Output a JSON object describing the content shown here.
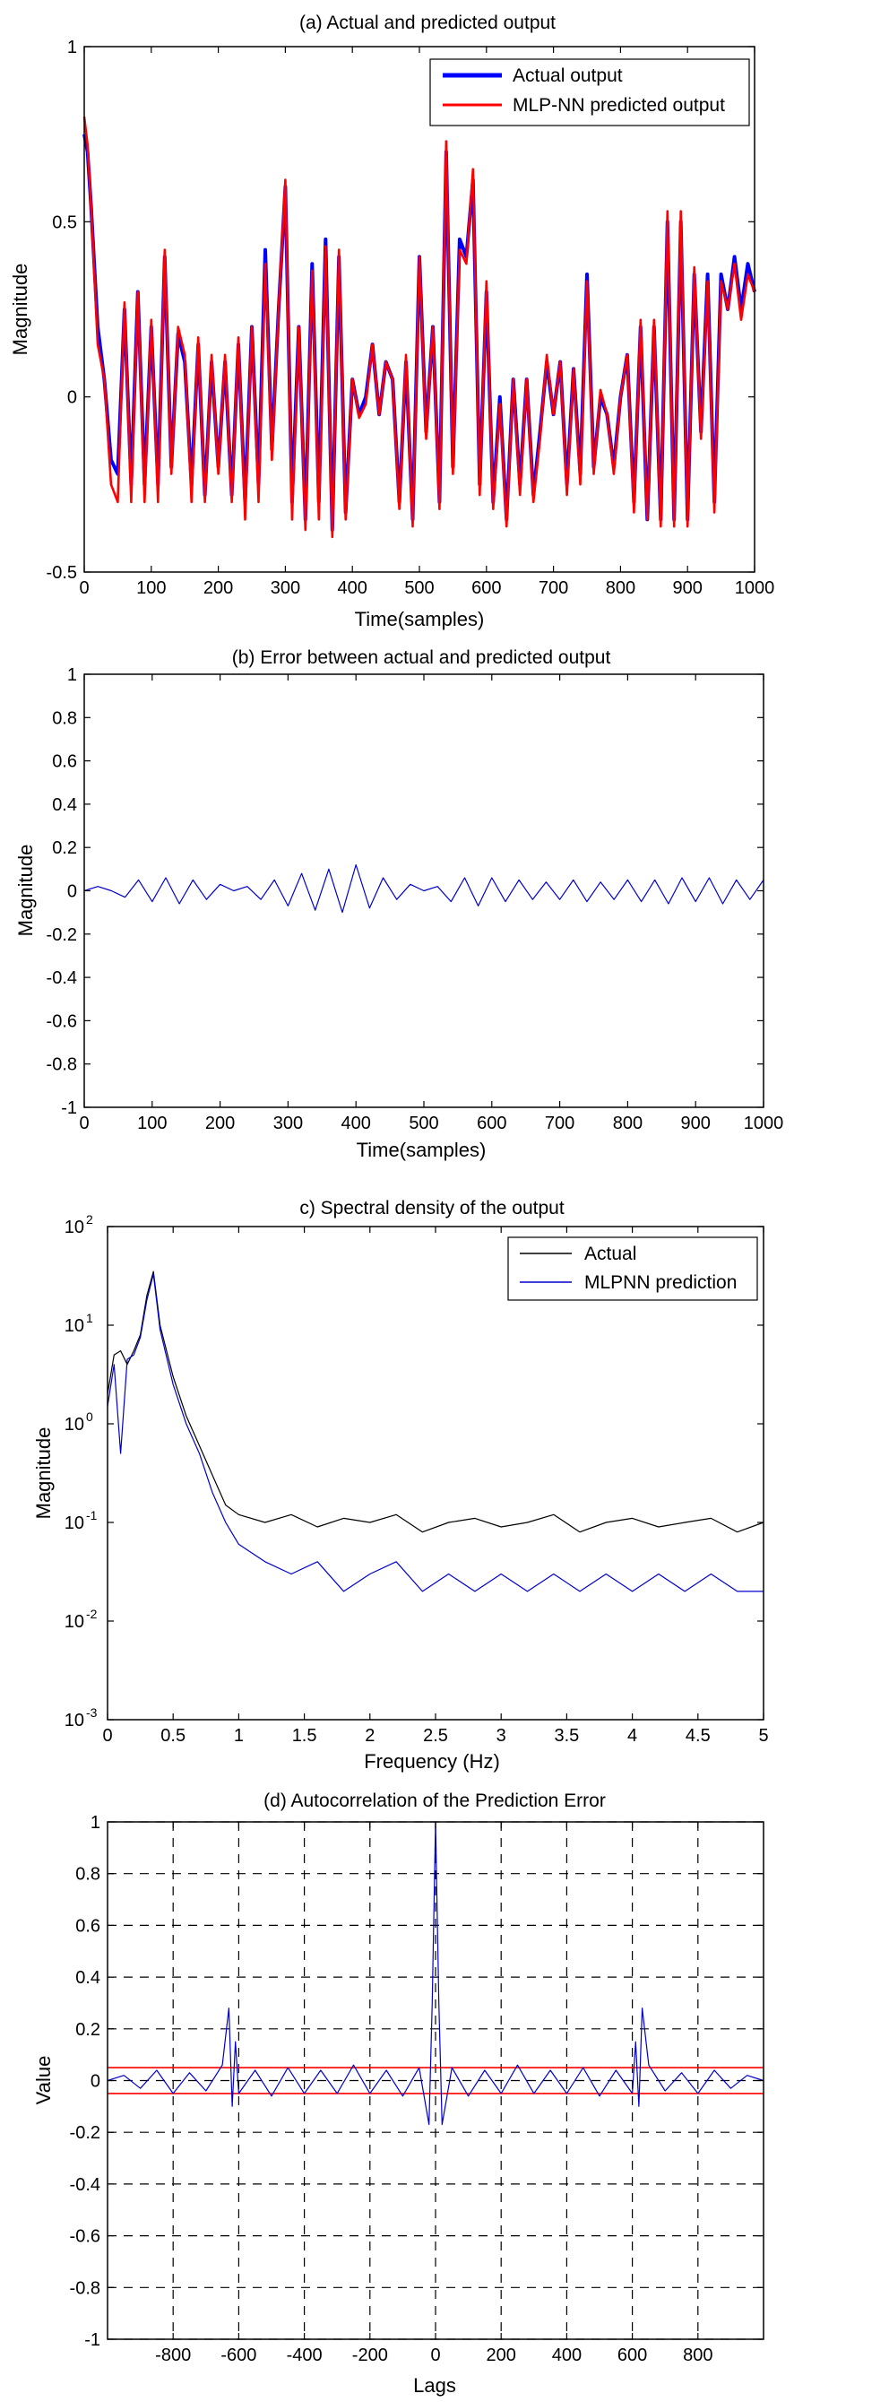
{
  "colors": {
    "actual_blue": "#0000ff",
    "predicted_red": "#ff0000",
    "error_blue": "#0000cc",
    "spectral_actual": "#000000",
    "spectral_prediction": "#0000cc",
    "confidence_red": "#ff0000"
  },
  "chart_data": [
    {
      "type": "line",
      "title": "(a) Actual and predicted output",
      "xlabel": "Time(samples)",
      "ylabel": "Magnitude",
      "xlim": [
        0,
        1000
      ],
      "ylim": [
        -0.5,
        1
      ],
      "xticks": [
        0,
        100,
        200,
        300,
        400,
        500,
        600,
        700,
        800,
        900,
        1000
      ],
      "yticks": [
        -0.5,
        0,
        0.5,
        1
      ],
      "grid": false,
      "legend": "top-right",
      "series": [
        {
          "name": "Actual output",
          "color": "#0000ff",
          "x": [
            0,
            5,
            10,
            20,
            30,
            40,
            50,
            60,
            70,
            80,
            90,
            100,
            110,
            120,
            130,
            140,
            150,
            160,
            170,
            180,
            190,
            200,
            210,
            220,
            230,
            240,
            250,
            260,
            270,
            280,
            290,
            300,
            310,
            320,
            330,
            340,
            350,
            360,
            370,
            380,
            390,
            400,
            410,
            420,
            430,
            440,
            450,
            460,
            470,
            480,
            490,
            500,
            510,
            520,
            530,
            540,
            550,
            560,
            570,
            580,
            590,
            600,
            610,
            620,
            630,
            640,
            650,
            660,
            670,
            680,
            690,
            700,
            710,
            720,
            730,
            740,
            750,
            760,
            770,
            780,
            790,
            800,
            810,
            820,
            830,
            840,
            850,
            860,
            870,
            880,
            890,
            900,
            910,
            920,
            930,
            940,
            950,
            960,
            970,
            980,
            990,
            1000
          ],
          "y": [
            0.75,
            0.7,
            0.55,
            0.2,
            0.05,
            -0.18,
            -0.22,
            0.25,
            -0.25,
            0.3,
            -0.25,
            0.2,
            -0.25,
            0.4,
            -0.2,
            0.18,
            0.1,
            -0.25,
            0.15,
            -0.28,
            0.1,
            -0.2,
            0.1,
            -0.28,
            0.15,
            -0.3,
            0.2,
            -0.25,
            0.42,
            -0.15,
            0.25,
            0.6,
            -0.3,
            0.2,
            -0.35,
            0.38,
            -0.3,
            0.45,
            -0.38,
            0.4,
            -0.33,
            0.05,
            -0.05,
            0.0,
            0.15,
            -0.05,
            0.1,
            0.05,
            -0.3,
            0.1,
            -0.35,
            0.4,
            -0.1,
            0.2,
            -0.3,
            0.7,
            -0.2,
            0.45,
            0.4,
            0.62,
            -0.25,
            0.3,
            -0.3,
            0.0,
            -0.35,
            0.05,
            -0.25,
            0.05,
            -0.28,
            -0.1,
            0.1,
            -0.05,
            0.1,
            -0.25,
            0.08,
            -0.22,
            0.35,
            -0.2,
            0.0,
            -0.05,
            -0.2,
            0.0,
            0.12,
            -0.3,
            0.2,
            -0.35,
            0.2,
            -0.35,
            0.5,
            -0.35,
            0.5,
            -0.35,
            0.35,
            -0.1,
            0.35,
            -0.3,
            0.35,
            0.25,
            0.4,
            0.25,
            0.38,
            0.3
          ],
          "width": 4
        },
        {
          "name": "MLP-NN predicted output",
          "color": "#ff0000",
          "x": [
            0,
            5,
            10,
            20,
            30,
            40,
            50,
            60,
            70,
            80,
            90,
            100,
            110,
            120,
            130,
            140,
            150,
            160,
            170,
            180,
            190,
            200,
            210,
            220,
            230,
            240,
            250,
            260,
            270,
            280,
            290,
            300,
            310,
            320,
            330,
            340,
            350,
            360,
            370,
            380,
            390,
            400,
            410,
            420,
            430,
            440,
            450,
            460,
            470,
            480,
            490,
            500,
            510,
            520,
            530,
            540,
            550,
            560,
            570,
            580,
            590,
            600,
            610,
            620,
            630,
            640,
            650,
            660,
            670,
            680,
            690,
            700,
            710,
            720,
            730,
            740,
            750,
            760,
            770,
            780,
            790,
            800,
            810,
            820,
            830,
            840,
            850,
            860,
            870,
            880,
            890,
            900,
            910,
            920,
            930,
            940,
            950,
            960,
            970,
            980,
            990,
            1000
          ],
          "y": [
            0.8,
            0.72,
            0.55,
            0.15,
            0.05,
            -0.25,
            -0.3,
            0.27,
            -0.3,
            0.3,
            -0.3,
            0.22,
            -0.3,
            0.42,
            -0.22,
            0.2,
            0.12,
            -0.3,
            0.17,
            -0.3,
            0.12,
            -0.22,
            0.12,
            -0.3,
            0.17,
            -0.35,
            0.2,
            -0.3,
            0.38,
            -0.18,
            0.25,
            0.62,
            -0.35,
            0.2,
            -0.38,
            0.36,
            -0.35,
            0.43,
            -0.4,
            0.42,
            -0.35,
            0.05,
            -0.06,
            -0.02,
            0.15,
            -0.05,
            0.1,
            0.05,
            -0.32,
            0.12,
            -0.37,
            0.4,
            -0.12,
            0.2,
            -0.32,
            0.73,
            -0.22,
            0.42,
            0.38,
            0.65,
            -0.28,
            0.33,
            -0.32,
            -0.02,
            -0.37,
            0.05,
            -0.28,
            0.05,
            -0.3,
            -0.12,
            0.12,
            -0.05,
            0.1,
            -0.28,
            0.08,
            -0.25,
            0.33,
            -0.22,
            0.02,
            -0.05,
            -0.22,
            0.0,
            0.12,
            -0.33,
            0.22,
            -0.35,
            0.22,
            -0.37,
            0.53,
            -0.37,
            0.53,
            -0.37,
            0.37,
            -0.12,
            0.33,
            -0.33,
            0.33,
            0.25,
            0.38,
            0.22,
            0.35,
            0.3
          ],
          "width": 2.6
        }
      ]
    },
    {
      "type": "line",
      "title": "(b) Error between actual and predicted output",
      "xlabel": "Time(samples)",
      "ylabel": "Magnitude",
      "xlim": [
        0,
        1000
      ],
      "ylim": [
        -1,
        1
      ],
      "xticks": [
        0,
        100,
        200,
        300,
        400,
        500,
        600,
        700,
        800,
        900,
        1000
      ],
      "yticks": [
        -1,
        -0.8,
        -0.6,
        -0.4,
        -0.2,
        0,
        0.2,
        0.4,
        0.6,
        0.8,
        1
      ],
      "grid": false,
      "series": [
        {
          "color": "#0000cc",
          "description": "oscillating error, amplitude about 0.05 to 0.12 around zero",
          "x": [
            0,
            20,
            40,
            60,
            80,
            100,
            120,
            140,
            160,
            180,
            200,
            220,
            240,
            260,
            280,
            300,
            320,
            340,
            360,
            380,
            400,
            420,
            440,
            460,
            480,
            500,
            520,
            540,
            560,
            580,
            600,
            620,
            640,
            660,
            680,
            700,
            720,
            740,
            760,
            780,
            800,
            820,
            840,
            860,
            880,
            900,
            920,
            940,
            960,
            980,
            1000
          ],
          "y": [
            0.0,
            0.02,
            0.0,
            -0.03,
            0.05,
            -0.05,
            0.06,
            -0.06,
            0.05,
            -0.04,
            0.03,
            0.0,
            0.02,
            -0.04,
            0.05,
            -0.07,
            0.08,
            -0.09,
            0.1,
            -0.1,
            0.12,
            -0.08,
            0.06,
            -0.04,
            0.03,
            0.0,
            0.02,
            -0.05,
            0.06,
            -0.07,
            0.06,
            -0.05,
            0.05,
            -0.04,
            0.04,
            -0.04,
            0.05,
            -0.05,
            0.04,
            -0.04,
            0.05,
            -0.05,
            0.05,
            -0.06,
            0.06,
            -0.05,
            0.06,
            -0.06,
            0.05,
            -0.04,
            0.05
          ]
        }
      ]
    },
    {
      "type": "line",
      "title": "c) Spectral density of the output",
      "xlabel": "Frequency (Hz)",
      "ylabel": "Magnitude",
      "xlim": [
        0,
        5
      ],
      "ylim": [
        0.001,
        100
      ],
      "yscale": "log",
      "xticks": [
        0,
        0.5,
        1,
        1.5,
        2,
        2.5,
        3,
        3.5,
        4,
        4.5,
        5
      ],
      "yticks": [
        0.001,
        0.01,
        0.1,
        1,
        10,
        100
      ],
      "grid": false,
      "legend": "top-right",
      "series": [
        {
          "name": "Actual",
          "color": "#000000",
          "x": [
            0.0,
            0.05,
            0.1,
            0.15,
            0.2,
            0.25,
            0.3,
            0.35,
            0.4,
            0.5,
            0.6,
            0.7,
            0.8,
            0.9,
            1.0,
            1.2,
            1.4,
            1.6,
            1.8,
            2.0,
            2.2,
            2.4,
            2.6,
            2.8,
            3.0,
            3.2,
            3.4,
            3.6,
            3.8,
            4.0,
            4.2,
            4.4,
            4.6,
            4.8,
            5.0
          ],
          "y": [
            2.0,
            5.0,
            5.5,
            4.0,
            5.5,
            8.0,
            20.0,
            35.0,
            10.0,
            3.0,
            1.2,
            0.6,
            0.3,
            0.15,
            0.12,
            0.1,
            0.12,
            0.09,
            0.11,
            0.1,
            0.12,
            0.08,
            0.1,
            0.11,
            0.09,
            0.1,
            0.12,
            0.08,
            0.1,
            0.11,
            0.09,
            0.1,
            0.11,
            0.08,
            0.1
          ]
        },
        {
          "name": "MLPNN prediction",
          "color": "#0000cc",
          "x": [
            0.0,
            0.05,
            0.1,
            0.15,
            0.2,
            0.25,
            0.3,
            0.35,
            0.4,
            0.5,
            0.6,
            0.7,
            0.8,
            0.9,
            1.0,
            1.2,
            1.4,
            1.6,
            1.8,
            2.0,
            2.2,
            2.4,
            2.6,
            2.8,
            3.0,
            3.2,
            3.4,
            3.6,
            3.8,
            4.0,
            4.2,
            4.4,
            4.6,
            4.8,
            5.0
          ],
          "y": [
            1.5,
            4.0,
            0.5,
            4.5,
            5.0,
            7.5,
            18.0,
            33.0,
            9.0,
            2.5,
            1.0,
            0.5,
            0.2,
            0.1,
            0.06,
            0.04,
            0.03,
            0.04,
            0.02,
            0.03,
            0.04,
            0.02,
            0.03,
            0.02,
            0.03,
            0.02,
            0.03,
            0.02,
            0.03,
            0.02,
            0.03,
            0.02,
            0.03,
            0.02,
            0.02
          ]
        }
      ]
    },
    {
      "type": "line",
      "title": "(d) Autocorrelation of the Prediction Error",
      "xlabel": "Lags",
      "ylabel": "Value",
      "xlim": [
        -1000,
        1000
      ],
      "ylim": [
        -1,
        1
      ],
      "xticks": [
        -800,
        -600,
        -400,
        -200,
        0,
        200,
        400,
        600,
        800
      ],
      "yticks": [
        -1,
        -0.8,
        -0.6,
        -0.4,
        -0.2,
        0,
        0.2,
        0.4,
        0.6,
        0.8,
        1
      ],
      "grid": true,
      "confidence_bounds": [
        0.05,
        -0.05
      ],
      "series": [
        {
          "color": "#0000cc",
          "x": [
            -1000,
            -950,
            -900,
            -850,
            -800,
            -750,
            -700,
            -650,
            -630,
            -620,
            -610,
            -600,
            -550,
            -500,
            -450,
            -400,
            -350,
            -300,
            -250,
            -200,
            -150,
            -100,
            -50,
            -20,
            -10,
            0,
            10,
            20,
            50,
            100,
            150,
            200,
            250,
            300,
            350,
            400,
            450,
            500,
            550,
            600,
            610,
            620,
            630,
            650,
            700,
            750,
            800,
            850,
            900,
            950,
            1000
          ],
          "y": [
            0.0,
            0.02,
            -0.03,
            0.04,
            -0.05,
            0.03,
            -0.04,
            0.06,
            0.28,
            -0.1,
            0.15,
            -0.05,
            0.04,
            -0.06,
            0.05,
            -0.05,
            0.04,
            -0.05,
            0.06,
            -0.05,
            0.04,
            -0.06,
            0.05,
            -0.17,
            0.3,
            1.0,
            0.3,
            -0.17,
            0.05,
            -0.06,
            0.04,
            -0.05,
            0.06,
            -0.05,
            0.04,
            -0.05,
            0.05,
            -0.06,
            0.04,
            -0.05,
            0.15,
            -0.1,
            0.28,
            0.06,
            -0.04,
            0.03,
            -0.05,
            0.04,
            -0.03,
            0.02,
            0.0
          ]
        }
      ]
    }
  ]
}
